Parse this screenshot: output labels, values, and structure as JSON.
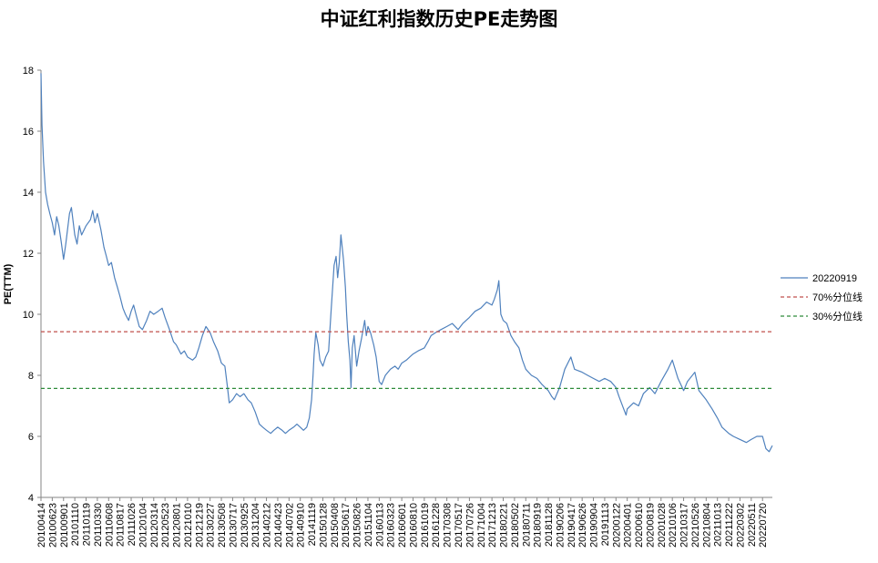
{
  "chart_data": {
    "type": "line",
    "title": "中证红利指数历史PE走势图",
    "xlabel": "",
    "ylabel": "PE(TTM)",
    "ylim": [
      4,
      18
    ],
    "yticks": [
      4,
      6,
      8,
      10,
      12,
      14,
      16,
      18
    ],
    "grid": false,
    "legend_position": "right",
    "x_tick_labels": [
      "20100414",
      "20100623",
      "20100901",
      "20101110",
      "20110119",
      "20110330",
      "20110608",
      "20110817",
      "20111026",
      "20120104",
      "20120314",
      "20120523",
      "20120801",
      "20121010",
      "20121219",
      "20130227",
      "20130508",
      "20130717",
      "20130925",
      "20131204",
      "20140212",
      "20140423",
      "20140702",
      "20140910",
      "20141119",
      "20150128",
      "20150408",
      "20150617",
      "20150826",
      "20151104",
      "20160113",
      "20160323",
      "20160601",
      "20160810",
      "20161019",
      "20161228",
      "20170308",
      "20170517",
      "20170726",
      "20171004",
      "20171213",
      "20180221",
      "20180502",
      "20180711",
      "20180919",
      "20181128",
      "20190206",
      "20190417",
      "20190626",
      "20190904",
      "20191113",
      "20200122",
      "20200401",
      "20200610",
      "20200819",
      "20201028",
      "20210106",
      "20210317",
      "20210526",
      "20210804",
      "20211013",
      "20211222",
      "20220302",
      "20220511",
      "20220720"
    ],
    "series": [
      {
        "name": "20220919",
        "color": "#4f81bd",
        "style": "solid",
        "points": [
          [
            "20100414",
            17.9
          ],
          [
            "20100420",
            16.2
          ],
          [
            "20100430",
            15.0
          ],
          [
            "20100512",
            14.0
          ],
          [
            "20100525",
            13.6
          ],
          [
            "20100608",
            13.3
          ],
          [
            "20100623",
            13.0
          ],
          [
            "20100707",
            12.6
          ],
          [
            "20100720",
            13.2
          ],
          [
            "20100803",
            12.9
          ],
          [
            "20100817",
            12.4
          ],
          [
            "20100901",
            11.8
          ],
          [
            "20100915",
            12.3
          ],
          [
            "20101008",
            13.3
          ],
          [
            "20101020",
            13.5
          ],
          [
            "20101110",
            12.6
          ],
          [
            "20101124",
            12.3
          ],
          [
            "20101208",
            12.9
          ],
          [
            "20101222",
            12.6
          ],
          [
            "20110119",
            12.9
          ],
          [
            "20110215",
            13.1
          ],
          [
            "20110301",
            13.4
          ],
          [
            "20110315",
            13.0
          ],
          [
            "20110330",
            13.3
          ],
          [
            "20110420",
            12.8
          ],
          [
            "20110510",
            12.2
          ],
          [
            "20110525",
            11.9
          ],
          [
            "20110608",
            11.6
          ],
          [
            "20110625",
            11.7
          ],
          [
            "20110715",
            11.2
          ],
          [
            "20110801",
            10.9
          ],
          [
            "20110817",
            10.6
          ],
          [
            "20110905",
            10.2
          ],
          [
            "20110920",
            10.0
          ],
          [
            "20111010",
            9.8
          ],
          [
            "20111026",
            10.1
          ],
          [
            "20111110",
            10.3
          ],
          [
            "20111125",
            10.0
          ],
          [
            "20111215",
            9.6
          ],
          [
            "20120104",
            9.5
          ],
          [
            "20120130",
            9.8
          ],
          [
            "20120220",
            10.1
          ],
          [
            "20120314",
            10.0
          ],
          [
            "20120410",
            10.1
          ],
          [
            "20120505",
            10.2
          ],
          [
            "20120523",
            9.9
          ],
          [
            "20120620",
            9.5
          ],
          [
            "20120715",
            9.1
          ],
          [
            "20120801",
            9.0
          ],
          [
            "20120830",
            8.7
          ],
          [
            "20120920",
            8.8
          ],
          [
            "20121010",
            8.6
          ],
          [
            "20121110",
            8.5
          ],
          [
            "20121130",
            8.6
          ],
          [
            "20121219",
            8.9
          ],
          [
            "20130110",
            9.3
          ],
          [
            "20130201",
            9.6
          ],
          [
            "20130227",
            9.4
          ],
          [
            "20130320",
            9.1
          ],
          [
            "20130415",
            8.8
          ],
          [
            "20130508",
            8.4
          ],
          [
            "20130530",
            8.3
          ],
          [
            "20130615",
            7.6
          ],
          [
            "20130626",
            7.1
          ],
          [
            "20130717",
            7.2
          ],
          [
            "20130810",
            7.4
          ],
          [
            "20130901",
            7.3
          ],
          [
            "20130925",
            7.4
          ],
          [
            "20131020",
            7.2
          ],
          [
            "20131110",
            7.1
          ],
          [
            "20131204",
            6.8
          ],
          [
            "20131230",
            6.4
          ],
          [
            "20140120",
            6.3
          ],
          [
            "20140212",
            6.2
          ],
          [
            "20140310",
            6.1
          ],
          [
            "20140330",
            6.2
          ],
          [
            "20140423",
            6.3
          ],
          [
            "20140520",
            6.2
          ],
          [
            "20140610",
            6.1
          ],
          [
            "20140702",
            6.2
          ],
          [
            "20140730",
            6.3
          ],
          [
            "20140820",
            6.4
          ],
          [
            "20140910",
            6.3
          ],
          [
            "20140930",
            6.2
          ],
          [
            "20141020",
            6.3
          ],
          [
            "20141105",
            6.6
          ],
          [
            "20141119",
            7.2
          ],
          [
            "20141128",
            8.0
          ],
          [
            "20141205",
            8.7
          ],
          [
            "20141215",
            9.4
          ],
          [
            "20141230",
            9.0
          ],
          [
            "20150110",
            8.5
          ],
          [
            "20150128",
            8.3
          ],
          [
            "20150215",
            8.6
          ],
          [
            "20150305",
            8.8
          ],
          [
            "20150320",
            10.1
          ],
          [
            "20150408",
            11.6
          ],
          [
            "20150420",
            11.9
          ],
          [
            "20150430",
            11.2
          ],
          [
            "20150510",
            11.7
          ],
          [
            "20150520",
            12.6
          ],
          [
            "20150605",
            11.8
          ],
          [
            "20150617",
            10.9
          ],
          [
            "20150625",
            10.0
          ],
          [
            "20150705",
            9.1
          ],
          [
            "20150715",
            8.5
          ],
          [
            "20150722",
            7.6
          ],
          [
            "20150730",
            8.9
          ],
          [
            "20150810",
            9.3
          ],
          [
            "20150826",
            8.3
          ],
          [
            "20150910",
            8.8
          ],
          [
            "20150925",
            9.2
          ],
          [
            "20151015",
            9.8
          ],
          [
            "20151025",
            9.3
          ],
          [
            "20151104",
            9.6
          ],
          [
            "20151120",
            9.4
          ],
          [
            "20151210",
            9.0
          ],
          [
            "20151225",
            8.6
          ],
          [
            "20160113",
            7.8
          ],
          [
            "20160128",
            7.7
          ],
          [
            "20160220",
            8.0
          ],
          [
            "20160323",
            8.2
          ],
          [
            "20160420",
            8.3
          ],
          [
            "20160510",
            8.2
          ],
          [
            "20160601",
            8.4
          ],
          [
            "20160630",
            8.5
          ],
          [
            "20160720",
            8.6
          ],
          [
            "20160810",
            8.7
          ],
          [
            "20160910",
            8.8
          ],
          [
            "20161019",
            8.9
          ],
          [
            "20161110",
            9.1
          ],
          [
            "20161130",
            9.3
          ],
          [
            "20161228",
            9.4
          ],
          [
            "20170130",
            9.5
          ],
          [
            "20170308",
            9.6
          ],
          [
            "20170410",
            9.7
          ],
          [
            "20170517",
            9.5
          ],
          [
            "20170615",
            9.7
          ],
          [
            "20170726",
            9.9
          ],
          [
            "20170830",
            10.1
          ],
          [
            "20171004",
            10.2
          ],
          [
            "20171110",
            10.4
          ],
          [
            "20171213",
            10.3
          ],
          [
            "20171228",
            10.5
          ],
          [
            "20180115",
            10.8
          ],
          [
            "20180125",
            11.1
          ],
          [
            "20180206",
            10.0
          ],
          [
            "20180221",
            9.8
          ],
          [
            "20180315",
            9.7
          ],
          [
            "20180410",
            9.3
          ],
          [
            "20180502",
            9.1
          ],
          [
            "20180530",
            8.9
          ],
          [
            "20180620",
            8.5
          ],
          [
            "20180711",
            8.2
          ],
          [
            "20180815",
            8.0
          ],
          [
            "20180919",
            7.9
          ],
          [
            "20181020",
            7.7
          ],
          [
            "20181128",
            7.5
          ],
          [
            "20181220",
            7.3
          ],
          [
            "20190105",
            7.2
          ],
          [
            "20190206",
            7.6
          ],
          [
            "20190310",
            8.2
          ],
          [
            "20190417",
            8.6
          ],
          [
            "20190510",
            8.2
          ],
          [
            "20190626",
            8.1
          ],
          [
            "20190730",
            8.0
          ],
          [
            "20190904",
            7.9
          ],
          [
            "20191010",
            7.8
          ],
          [
            "20191113",
            7.9
          ],
          [
            "20191220",
            7.8
          ],
          [
            "20200122",
            7.6
          ],
          [
            "20200210",
            7.3
          ],
          [
            "20200310",
            6.9
          ],
          [
            "20200325",
            6.7
          ],
          [
            "20200401",
            6.9
          ],
          [
            "20200510",
            7.1
          ],
          [
            "20200610",
            7.0
          ],
          [
            "20200710",
            7.4
          ],
          [
            "20200819",
            7.6
          ],
          [
            "20200920",
            7.4
          ],
          [
            "20201028",
            7.8
          ],
          [
            "20201210",
            8.2
          ],
          [
            "20210106",
            8.5
          ],
          [
            "20210210",
            7.9
          ],
          [
            "20210317",
            7.5
          ],
          [
            "20210410",
            7.8
          ],
          [
            "20210526",
            8.1
          ],
          [
            "20210620",
            7.5
          ],
          [
            "20210804",
            7.2
          ],
          [
            "20210910",
            6.9
          ],
          [
            "20211013",
            6.6
          ],
          [
            "20211110",
            6.3
          ],
          [
            "20211222",
            6.1
          ],
          [
            "20220120",
            6.0
          ],
          [
            "20220302",
            5.9
          ],
          [
            "20220410",
            5.8
          ],
          [
            "20220511",
            5.9
          ],
          [
            "20220615",
            6.0
          ],
          [
            "20220720",
            6.0
          ],
          [
            "20220810",
            5.6
          ],
          [
            "20220830",
            5.5
          ],
          [
            "20220919",
            5.7
          ]
        ]
      },
      {
        "name": "70%分位线",
        "color": "#c0504d",
        "style": "dashed",
        "value": 9.43
      },
      {
        "name": "30%分位线",
        "color": "#2e8b3a",
        "style": "dashed",
        "value": 7.57
      }
    ]
  }
}
